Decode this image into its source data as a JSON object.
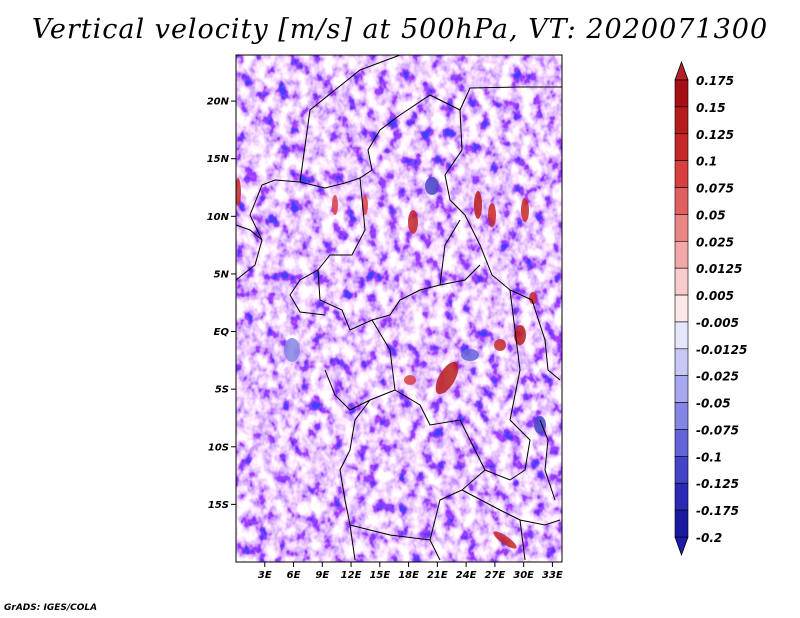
{
  "title": "Vertical velocity [m/s] at 500hPa, VT: 2020071300",
  "footer": "GrADS: IGES/COLA",
  "map": {
    "variable": "Vertical velocity",
    "units": "m/s",
    "level": "500hPa",
    "valid_time": "2020071300",
    "lon_range": [
      0,
      34
    ],
    "lat_range": [
      -20,
      24
    ],
    "lat_ticks": [
      {
        "value": 20,
        "label": "20N"
      },
      {
        "value": 15,
        "label": "15N"
      },
      {
        "value": 10,
        "label": "10N"
      },
      {
        "value": 5,
        "label": "5N"
      },
      {
        "value": 0,
        "label": "EQ"
      },
      {
        "value": -5,
        "label": "5S"
      },
      {
        "value": -10,
        "label": "10S"
      },
      {
        "value": -15,
        "label": "15S"
      }
    ],
    "lon_ticks": [
      {
        "value": 3,
        "label": "3E"
      },
      {
        "value": 6,
        "label": "6E"
      },
      {
        "value": 9,
        "label": "9E"
      },
      {
        "value": 12,
        "label": "12E"
      },
      {
        "value": 15,
        "label": "15E"
      },
      {
        "value": 18,
        "label": "18E"
      },
      {
        "value": 21,
        "label": "21E"
      },
      {
        "value": 24,
        "label": "24E"
      },
      {
        "value": 27,
        "label": "27E"
      },
      {
        "value": 30,
        "label": "30E"
      },
      {
        "value": 33,
        "label": "33E"
      }
    ]
  },
  "colorbar": {
    "levels": [
      {
        "label": "0.175",
        "color": "#a50f15"
      },
      {
        "label": "0.15",
        "color": "#b71c1c"
      },
      {
        "label": "0.125",
        "color": "#c62828"
      },
      {
        "label": "0.1",
        "color": "#d84040"
      },
      {
        "label": "0.075",
        "color": "#e06060"
      },
      {
        "label": "0.05",
        "color": "#e98585"
      },
      {
        "label": "0.025",
        "color": "#f2a8a8"
      },
      {
        "label": "0.0125",
        "color": "#f8cccc"
      },
      {
        "label": "0.005",
        "color": "#fde8e8"
      },
      {
        "label": "-0.005",
        "color": "#ffffff"
      },
      {
        "label": "-0.0125",
        "color": "#e6e6fb"
      },
      {
        "label": "-0.025",
        "color": "#c8c8f6"
      },
      {
        "label": "-0.05",
        "color": "#a8a8f0"
      },
      {
        "label": "-0.075",
        "color": "#8585e6"
      },
      {
        "label": "-0.1",
        "color": "#6464d8"
      },
      {
        "label": "-0.125",
        "color": "#4444c8"
      },
      {
        "label": "-0.175",
        "color": "#2a2ab5"
      },
      {
        "label": "-0.2",
        "color": "#1a1aa0"
      }
    ],
    "top_color": "#b5202a",
    "bottom_color": "#1c1ca8"
  }
}
